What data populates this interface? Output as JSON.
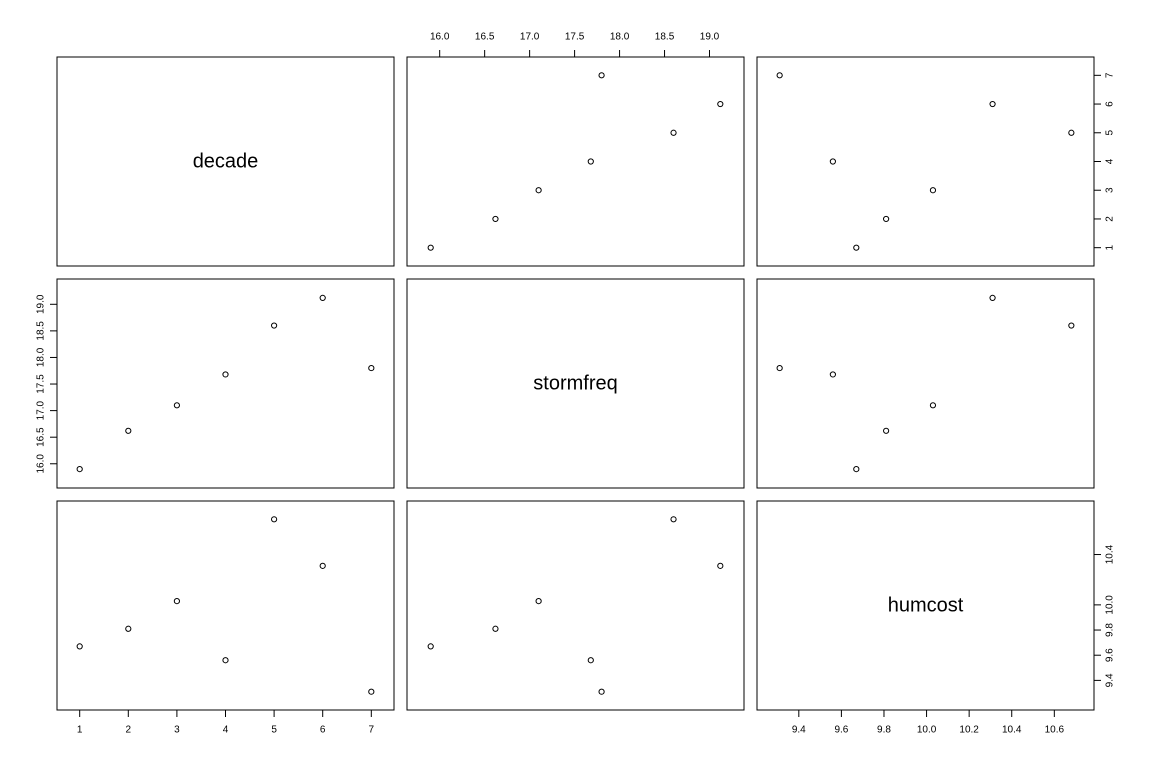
{
  "chart_data": {
    "type": "scatter",
    "kind": "pairs-matrix",
    "variables": [
      "decade",
      "stormfreq",
      "humcost"
    ],
    "observations": {
      "decade": [
        1,
        2,
        3,
        4,
        5,
        6,
        7
      ],
      "stormfreq": [
        15.9,
        16.62,
        17.1,
        17.68,
        18.6,
        19.12,
        17.8
      ],
      "humcost": [
        9.67,
        9.81,
        10.03,
        9.56,
        10.68,
        10.31,
        9.31
      ]
    },
    "axes": {
      "decade": {
        "range": [
          0.78,
          7.22
        ],
        "ticks": [
          1,
          2,
          3,
          4,
          5,
          6,
          7
        ],
        "tick_labels": [
          "1",
          "2",
          "3",
          "4",
          "5",
          "6",
          "7"
        ]
      },
      "stormfreq": {
        "range": [
          15.77,
          19.25
        ],
        "ticks": [
          16.0,
          16.5,
          17.0,
          17.5,
          18.0,
          18.5,
          19.0
        ],
        "tick_labels": [
          "16.0",
          "16.5",
          "17.0",
          "17.5",
          "18.0",
          "18.5",
          "19.0"
        ]
      },
      "humcost": {
        "range": [
          9.26,
          10.73
        ],
        "ticks": [
          9.4,
          9.6,
          9.8,
          10.0,
          10.2,
          10.4,
          10.6
        ],
        "tick_labels": [
          "9.4",
          "9.6",
          "9.8",
          "10.0",
          "10.2",
          "10.4",
          "10.6"
        ],
        "y_tick_labels": [
          "9.4",
          "9.6",
          "9.8",
          "10.0",
          "10.4"
        ]
      }
    },
    "grid": false,
    "legend": "none"
  }
}
